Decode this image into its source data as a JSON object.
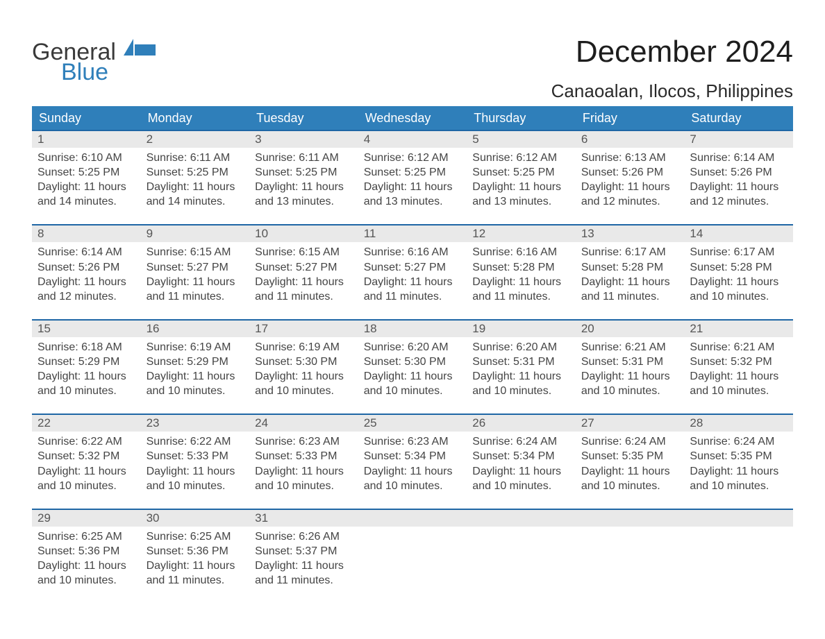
{
  "branding": {
    "logo_line1": "General",
    "logo_line2": "Blue",
    "logo_gray_color": "#3a3a3a",
    "logo_blue_color": "#2f7fba"
  },
  "header": {
    "month_title": "December 2024",
    "location": "Canaoalan, Ilocos, Philippines"
  },
  "style": {
    "accent_color": "#2f7fba",
    "accent_border_color": "#1e66a5",
    "gray_strip_color": "#e9e9e9",
    "background_color": "#ffffff",
    "text_color": "#333333",
    "header_font_size_pt": 33,
    "subheader_font_size_pt": 20,
    "dow_font_size_pt": 14,
    "cell_font_size_pt": 12,
    "columns": 7
  },
  "days_of_week": [
    "Sunday",
    "Monday",
    "Tuesday",
    "Wednesday",
    "Thursday",
    "Friday",
    "Saturday"
  ],
  "weeks": [
    [
      {
        "num": "1",
        "sunrise": "Sunrise: 6:10 AM",
        "sunset": "Sunset: 5:25 PM",
        "daylight1": "Daylight: 11 hours",
        "daylight2": "and 14 minutes."
      },
      {
        "num": "2",
        "sunrise": "Sunrise: 6:11 AM",
        "sunset": "Sunset: 5:25 PM",
        "daylight1": "Daylight: 11 hours",
        "daylight2": "and 14 minutes."
      },
      {
        "num": "3",
        "sunrise": "Sunrise: 6:11 AM",
        "sunset": "Sunset: 5:25 PM",
        "daylight1": "Daylight: 11 hours",
        "daylight2": "and 13 minutes."
      },
      {
        "num": "4",
        "sunrise": "Sunrise: 6:12 AM",
        "sunset": "Sunset: 5:25 PM",
        "daylight1": "Daylight: 11 hours",
        "daylight2": "and 13 minutes."
      },
      {
        "num": "5",
        "sunrise": "Sunrise: 6:12 AM",
        "sunset": "Sunset: 5:25 PM",
        "daylight1": "Daylight: 11 hours",
        "daylight2": "and 13 minutes."
      },
      {
        "num": "6",
        "sunrise": "Sunrise: 6:13 AM",
        "sunset": "Sunset: 5:26 PM",
        "daylight1": "Daylight: 11 hours",
        "daylight2": "and 12 minutes."
      },
      {
        "num": "7",
        "sunrise": "Sunrise: 6:14 AM",
        "sunset": "Sunset: 5:26 PM",
        "daylight1": "Daylight: 11 hours",
        "daylight2": "and 12 minutes."
      }
    ],
    [
      {
        "num": "8",
        "sunrise": "Sunrise: 6:14 AM",
        "sunset": "Sunset: 5:26 PM",
        "daylight1": "Daylight: 11 hours",
        "daylight2": "and 12 minutes."
      },
      {
        "num": "9",
        "sunrise": "Sunrise: 6:15 AM",
        "sunset": "Sunset: 5:27 PM",
        "daylight1": "Daylight: 11 hours",
        "daylight2": "and 11 minutes."
      },
      {
        "num": "10",
        "sunrise": "Sunrise: 6:15 AM",
        "sunset": "Sunset: 5:27 PM",
        "daylight1": "Daylight: 11 hours",
        "daylight2": "and 11 minutes."
      },
      {
        "num": "11",
        "sunrise": "Sunrise: 6:16 AM",
        "sunset": "Sunset: 5:27 PM",
        "daylight1": "Daylight: 11 hours",
        "daylight2": "and 11 minutes."
      },
      {
        "num": "12",
        "sunrise": "Sunrise: 6:16 AM",
        "sunset": "Sunset: 5:28 PM",
        "daylight1": "Daylight: 11 hours",
        "daylight2": "and 11 minutes."
      },
      {
        "num": "13",
        "sunrise": "Sunrise: 6:17 AM",
        "sunset": "Sunset: 5:28 PM",
        "daylight1": "Daylight: 11 hours",
        "daylight2": "and 11 minutes."
      },
      {
        "num": "14",
        "sunrise": "Sunrise: 6:17 AM",
        "sunset": "Sunset: 5:28 PM",
        "daylight1": "Daylight: 11 hours",
        "daylight2": "and 10 minutes."
      }
    ],
    [
      {
        "num": "15",
        "sunrise": "Sunrise: 6:18 AM",
        "sunset": "Sunset: 5:29 PM",
        "daylight1": "Daylight: 11 hours",
        "daylight2": "and 10 minutes."
      },
      {
        "num": "16",
        "sunrise": "Sunrise: 6:19 AM",
        "sunset": "Sunset: 5:29 PM",
        "daylight1": "Daylight: 11 hours",
        "daylight2": "and 10 minutes."
      },
      {
        "num": "17",
        "sunrise": "Sunrise: 6:19 AM",
        "sunset": "Sunset: 5:30 PM",
        "daylight1": "Daylight: 11 hours",
        "daylight2": "and 10 minutes."
      },
      {
        "num": "18",
        "sunrise": "Sunrise: 6:20 AM",
        "sunset": "Sunset: 5:30 PM",
        "daylight1": "Daylight: 11 hours",
        "daylight2": "and 10 minutes."
      },
      {
        "num": "19",
        "sunrise": "Sunrise: 6:20 AM",
        "sunset": "Sunset: 5:31 PM",
        "daylight1": "Daylight: 11 hours",
        "daylight2": "and 10 minutes."
      },
      {
        "num": "20",
        "sunrise": "Sunrise: 6:21 AM",
        "sunset": "Sunset: 5:31 PM",
        "daylight1": "Daylight: 11 hours",
        "daylight2": "and 10 minutes."
      },
      {
        "num": "21",
        "sunrise": "Sunrise: 6:21 AM",
        "sunset": "Sunset: 5:32 PM",
        "daylight1": "Daylight: 11 hours",
        "daylight2": "and 10 minutes."
      }
    ],
    [
      {
        "num": "22",
        "sunrise": "Sunrise: 6:22 AM",
        "sunset": "Sunset: 5:32 PM",
        "daylight1": "Daylight: 11 hours",
        "daylight2": "and 10 minutes."
      },
      {
        "num": "23",
        "sunrise": "Sunrise: 6:22 AM",
        "sunset": "Sunset: 5:33 PM",
        "daylight1": "Daylight: 11 hours",
        "daylight2": "and 10 minutes."
      },
      {
        "num": "24",
        "sunrise": "Sunrise: 6:23 AM",
        "sunset": "Sunset: 5:33 PM",
        "daylight1": "Daylight: 11 hours",
        "daylight2": "and 10 minutes."
      },
      {
        "num": "25",
        "sunrise": "Sunrise: 6:23 AM",
        "sunset": "Sunset: 5:34 PM",
        "daylight1": "Daylight: 11 hours",
        "daylight2": "and 10 minutes."
      },
      {
        "num": "26",
        "sunrise": "Sunrise: 6:24 AM",
        "sunset": "Sunset: 5:34 PM",
        "daylight1": "Daylight: 11 hours",
        "daylight2": "and 10 minutes."
      },
      {
        "num": "27",
        "sunrise": "Sunrise: 6:24 AM",
        "sunset": "Sunset: 5:35 PM",
        "daylight1": "Daylight: 11 hours",
        "daylight2": "and 10 minutes."
      },
      {
        "num": "28",
        "sunrise": "Sunrise: 6:24 AM",
        "sunset": "Sunset: 5:35 PM",
        "daylight1": "Daylight: 11 hours",
        "daylight2": "and 10 minutes."
      }
    ],
    [
      {
        "num": "29",
        "sunrise": "Sunrise: 6:25 AM",
        "sunset": "Sunset: 5:36 PM",
        "daylight1": "Daylight: 11 hours",
        "daylight2": "and 10 minutes."
      },
      {
        "num": "30",
        "sunrise": "Sunrise: 6:25 AM",
        "sunset": "Sunset: 5:36 PM",
        "daylight1": "Daylight: 11 hours",
        "daylight2": "and 11 minutes."
      },
      {
        "num": "31",
        "sunrise": "Sunrise: 6:26 AM",
        "sunset": "Sunset: 5:37 PM",
        "daylight1": "Daylight: 11 hours",
        "daylight2": "and 11 minutes."
      },
      {
        "num": "",
        "sunrise": "",
        "sunset": "",
        "daylight1": "",
        "daylight2": ""
      },
      {
        "num": "",
        "sunrise": "",
        "sunset": "",
        "daylight1": "",
        "daylight2": ""
      },
      {
        "num": "",
        "sunrise": "",
        "sunset": "",
        "daylight1": "",
        "daylight2": ""
      },
      {
        "num": "",
        "sunrise": "",
        "sunset": "",
        "daylight1": "",
        "daylight2": ""
      }
    ]
  ]
}
